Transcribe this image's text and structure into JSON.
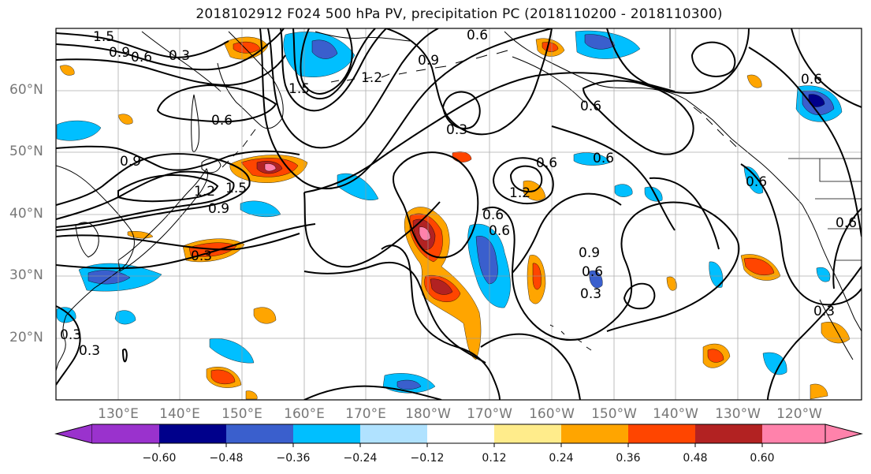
{
  "title": "2018102912 F024 500 hPa PV, precipitation PC (2018110200 - 2018110300)",
  "lat_labels": [
    "60°N",
    "50°N",
    "40°N",
    "30°N",
    "20°N"
  ],
  "lon_labels": [
    "130°E",
    "140°E",
    "150°E",
    "160°E",
    "170°E",
    "180°W",
    "170°W",
    "160°W",
    "150°W",
    "140°W",
    "130°W",
    "120°W"
  ],
  "contour_labels": [
    "1.5",
    "0.9",
    "0.6",
    "0.3",
    "0.6",
    "0.9",
    "1.2",
    "1.5",
    "0.6",
    "0.9",
    "1.5",
    "1.2",
    "0.3",
    "0.6",
    "0.9",
    "1.2",
    "0.6",
    "0.6",
    "0.3",
    "0.6",
    "0.9",
    "0.6",
    "0.3",
    "0.3",
    "0.3",
    "0.6",
    "0.6",
    "0.3",
    "0.6",
    "0.6"
  ],
  "colorbar": {
    "colors": [
      "#9a32cd",
      "#00008b",
      "#3a5fcd",
      "#00bfff",
      "#b0e2ff",
      "#ffffff",
      "#ffec8b",
      "#ffa500",
      "#ff4500",
      "#b22222",
      "#ff82ab"
    ],
    "tick_labels": [
      "−0.60",
      "−0.48",
      "−0.36",
      "−0.24",
      "−0.12",
      "0.12",
      "0.24",
      "0.36",
      "0.48",
      "0.60"
    ]
  }
}
